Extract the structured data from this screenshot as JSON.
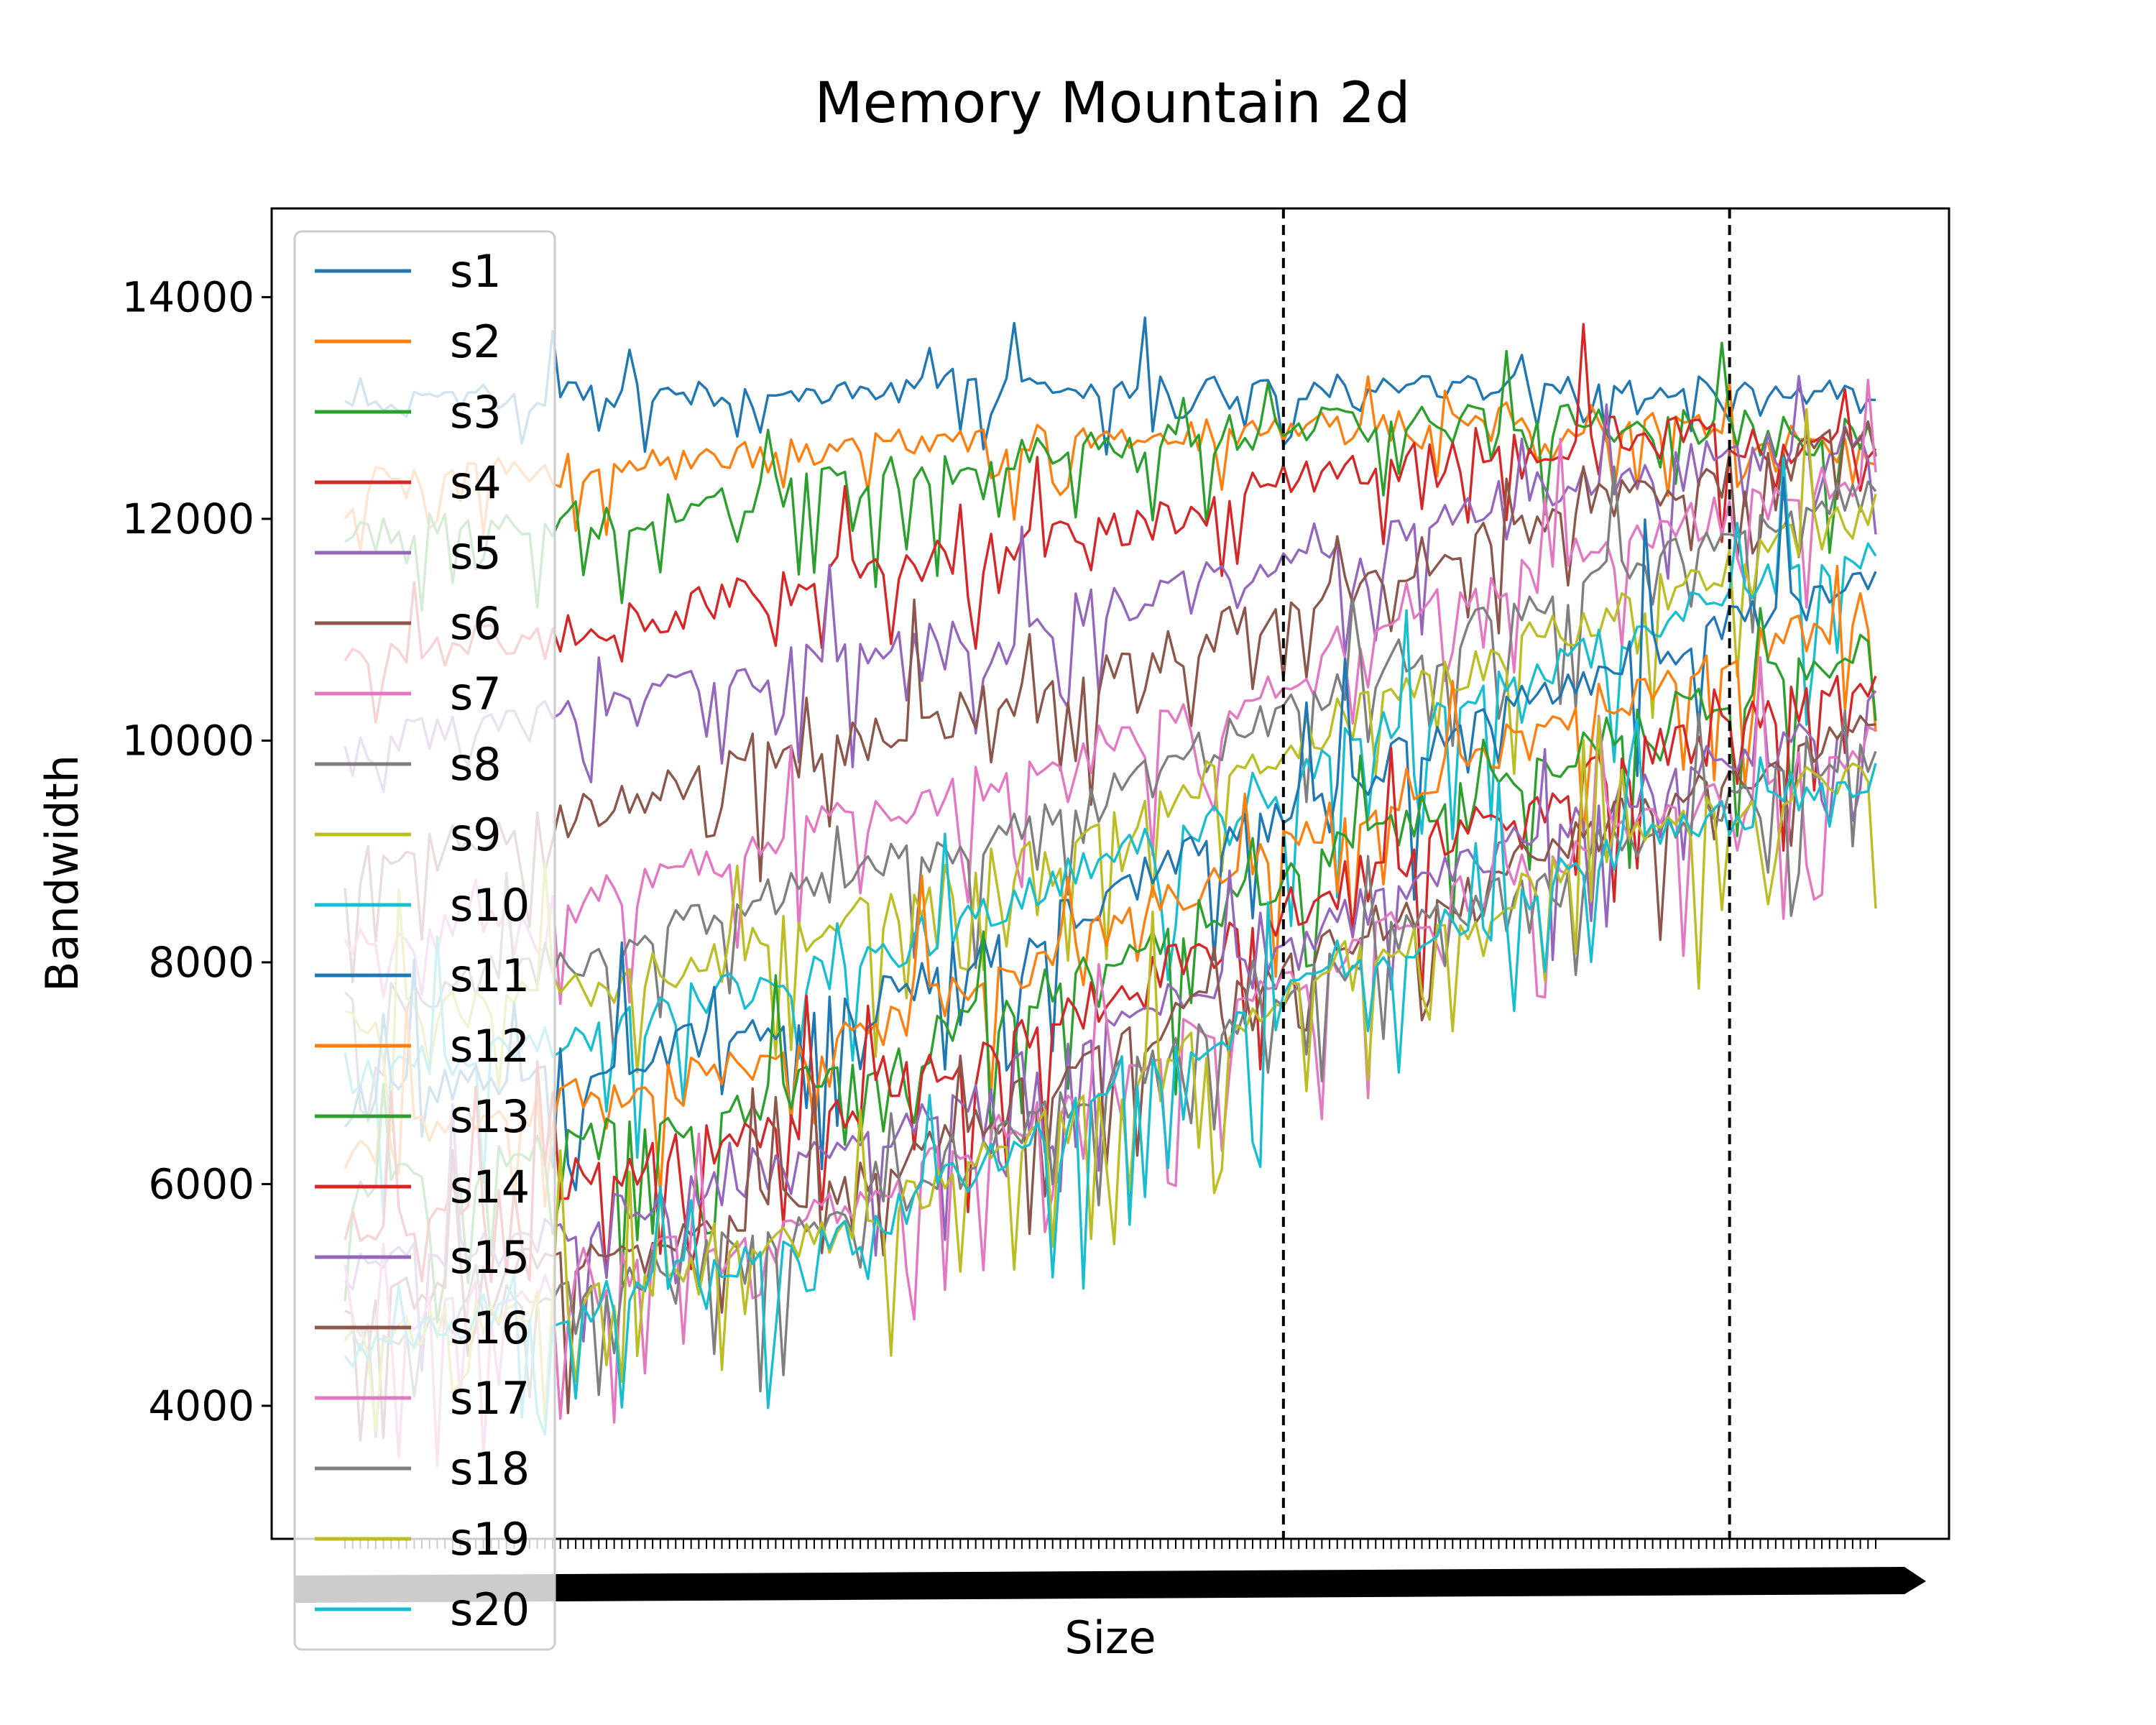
{
  "chart_data": {
    "type": "line",
    "title": "Memory Mountain 2d",
    "xlabel": "Size",
    "ylabel": "Bandwidth",
    "ylim": [
      2800,
      14800
    ],
    "yticks": [
      4000,
      6000,
      8000,
      10000,
      12000,
      14000
    ],
    "ytick_labels": [
      "4000",
      "6000",
      "8000",
      "10000",
      "12000",
      "14000"
    ],
    "x_count": 200,
    "x_breaks": [
      122,
      180
    ],
    "legend_position": "upper left",
    "grid": false,
    "series": [
      {
        "name": "s1",
        "color": "#1f77b4",
        "anchors": [
          13100,
          13120,
          13150,
          13180,
          13200,
          13180,
          13150
        ],
        "noise": 120,
        "dip_rate": 0.25,
        "dip_depth": 500,
        "spike_height": 700
      },
      {
        "name": "s2",
        "color": "#ff7f0e",
        "anchors": [
          12300,
          12450,
          12650,
          12750,
          12820,
          12880,
          12600
        ],
        "noise": 160,
        "dip_rate": 0.22,
        "dip_depth": 700,
        "spike_height": 500
      },
      {
        "name": "s3",
        "color": "#2ca02c",
        "anchors": [
          11800,
          12000,
          12350,
          12700,
          12850,
          12900,
          12700
        ],
        "noise": 180,
        "dip_rate": 0.2,
        "dip_depth": 900,
        "spike_height": 700
      },
      {
        "name": "s4",
        "color": "#d62728",
        "anchors": [
          10700,
          11000,
          11500,
          11900,
          12500,
          12800,
          12600
        ],
        "noise": 200,
        "dip_rate": 0.18,
        "dip_depth": 900,
        "spike_height": 900
      },
      {
        "name": "s5",
        "color": "#9467bd",
        "anchors": [
          9900,
          10300,
          10800,
          11200,
          11900,
          12400,
          12700
        ],
        "noise": 200,
        "dip_rate": 0.18,
        "dip_depth": 1000,
        "spike_height": 1000
      },
      {
        "name": "s6",
        "color": "#8c564b",
        "anchors": [
          8800,
          9400,
          10000,
          10600,
          11500,
          12200,
          12700
        ],
        "noise": 200,
        "dip_rate": 0.18,
        "dip_depth": 1000,
        "spike_height": 1100
      },
      {
        "name": "s7",
        "color": "#e377c2",
        "anchors": [
          8100,
          8600,
          9300,
          9900,
          10900,
          11800,
          12400
        ],
        "noise": 200,
        "dip_rate": 0.18,
        "dip_depth": 1100,
        "spike_height": 1100
      },
      {
        "name": "s8",
        "color": "#7f7f7f",
        "anchors": [
          7600,
          8100,
          8800,
          9500,
          10600,
          11500,
          12300
        ],
        "noise": 200,
        "dip_rate": 0.18,
        "dip_depth": 1100,
        "spike_height": 1200
      },
      {
        "name": "s9",
        "color": "#bcbd22",
        "anchors": [
          7400,
          7800,
          8400,
          9200,
          10300,
          11200,
          12100
        ],
        "noise": 200,
        "dip_rate": 0.18,
        "dip_depth": 1200,
        "spike_height": 1200
      },
      {
        "name": "s10",
        "color": "#17becf",
        "anchors": [
          7000,
          7400,
          8000,
          8900,
          10000,
          10900,
          11800
        ],
        "noise": 200,
        "dip_rate": 0.2,
        "dip_depth": 1300,
        "spike_height": 1200
      },
      {
        "name": "s11",
        "color": "#1f77b4",
        "anchors": [
          6700,
          7100,
          7600,
          8600,
          9700,
          10700,
          11500
        ],
        "noise": 200,
        "dip_rate": 0.2,
        "dip_depth": 1300,
        "spike_height": 1300
      },
      {
        "name": "s12",
        "color": "#ff7f0e",
        "anchors": [
          6300,
          6800,
          7300,
          8300,
          9400,
          10400,
          11200
        ],
        "noise": 200,
        "dip_rate": 0.2,
        "dip_depth": 1300,
        "spike_height": 1300
      },
      {
        "name": "s13",
        "color": "#2ca02c",
        "anchors": [
          5900,
          6400,
          7000,
          8000,
          9100,
          10100,
          10900
        ],
        "noise": 200,
        "dip_rate": 0.2,
        "dip_depth": 1300,
        "spike_height": 1300
      },
      {
        "name": "s14",
        "color": "#d62728",
        "anchors": [
          5600,
          6100,
          6700,
          7700,
          8800,
          9800,
          10600
        ],
        "noise": 200,
        "dip_rate": 0.2,
        "dip_depth": 1300,
        "spike_height": 1300
      },
      {
        "name": "s15",
        "color": "#9467bd",
        "anchors": [
          5200,
          5700,
          6300,
          7400,
          8500,
          9500,
          10300
        ],
        "noise": 180,
        "dip_rate": 0.2,
        "dip_depth": 1300,
        "spike_height": 1300
      },
      {
        "name": "s16",
        "color": "#8c564b",
        "anchors": [
          4900,
          5400,
          6000,
          7200,
          8300,
          9300,
          10100
        ],
        "noise": 180,
        "dip_rate": 0.2,
        "dip_depth": 1300,
        "spike_height": 1300
      },
      {
        "name": "s17",
        "color": "#e377c2",
        "anchors": [
          4700,
          5200,
          5800,
          7000,
          8200,
          9200,
          10000
        ],
        "noise": 180,
        "dip_rate": 0.22,
        "dip_depth": 1400,
        "spike_height": 1300
      },
      {
        "name": "s18",
        "color": "#7f7f7f",
        "anchors": [
          4600,
          5100,
          5700,
          6900,
          8100,
          9100,
          9900
        ],
        "noise": 180,
        "dip_rate": 0.22,
        "dip_depth": 1400,
        "spike_height": 1300
      },
      {
        "name": "s19",
        "color": "#bcbd22",
        "anchors": [
          4550,
          5000,
          5600,
          6850,
          8050,
          9050,
          9800
        ],
        "noise": 180,
        "dip_rate": 0.22,
        "dip_depth": 1400,
        "spike_height": 1300
      },
      {
        "name": "s20",
        "color": "#17becf",
        "anchors": [
          4500,
          4950,
          5550,
          6800,
          8000,
          9000,
          9700
        ],
        "noise": 180,
        "dip_rate": 0.24,
        "dip_depth": 1500,
        "spike_height": 1300
      }
    ]
  }
}
